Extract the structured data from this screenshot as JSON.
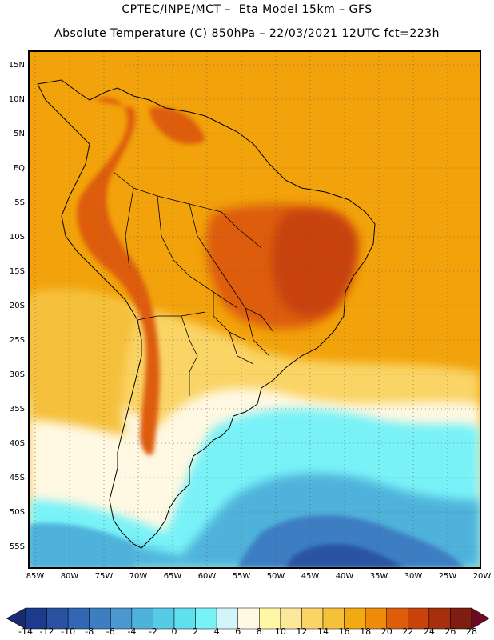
{
  "header": {
    "line1": "CPTEC/INPE/MCT –  Eta Model 15km – GFS",
    "line2": "Absolute Temperature (C) 850hPa – 22/03/2021 12UTC fct=223h"
  },
  "axes": {
    "lat_labels": [
      "15N",
      "10N",
      "5N",
      "EQ",
      "5S",
      "10S",
      "15S",
      "20S",
      "25S",
      "30S",
      "35S",
      "40S",
      "45S",
      "50S",
      "55S"
    ],
    "lon_labels": [
      "85W",
      "80W",
      "75W",
      "70W",
      "65W",
      "60W",
      "55W",
      "50W",
      "45W",
      "40W",
      "35W",
      "30W",
      "25W",
      "20W"
    ]
  },
  "colorbar": {
    "labels": [
      "-14",
      "-12",
      "-10",
      "-8",
      "-6",
      "-4",
      "-2",
      "0",
      "2",
      "4",
      "6",
      "8",
      "10",
      "12",
      "14",
      "16",
      "18",
      "20",
      "22",
      "24",
      "26",
      "28"
    ],
    "colors": [
      "#1c3b8c",
      "#2a52a3",
      "#3366b5",
      "#3d7ec3",
      "#4a98cf",
      "#4fb2db",
      "#55cbe6",
      "#5fe0ef",
      "#78f2f7",
      "#d2f4fb",
      "#fff8e2",
      "#fff7a6",
      "#fde79a",
      "#fad465",
      "#f5c03a",
      "#f2aa12",
      "#f08a0a",
      "#dd5d0a",
      "#c8420c",
      "#a62f0e",
      "#7e1e10"
    ],
    "left_arrow_color": "#1a2b70",
    "right_arrow_color": "#6d0a22"
  },
  "map": {
    "regions": {
      "ocean_warm": "#f2a20a",
      "hot_core": "#dd5d0a",
      "very_hot": "#c8420c",
      "mid": "#fad465",
      "cool": "#78f2f7",
      "cold": "#4fb2db",
      "colder": "#3d7ec3",
      "coldest": "#2a52a3"
    }
  }
}
